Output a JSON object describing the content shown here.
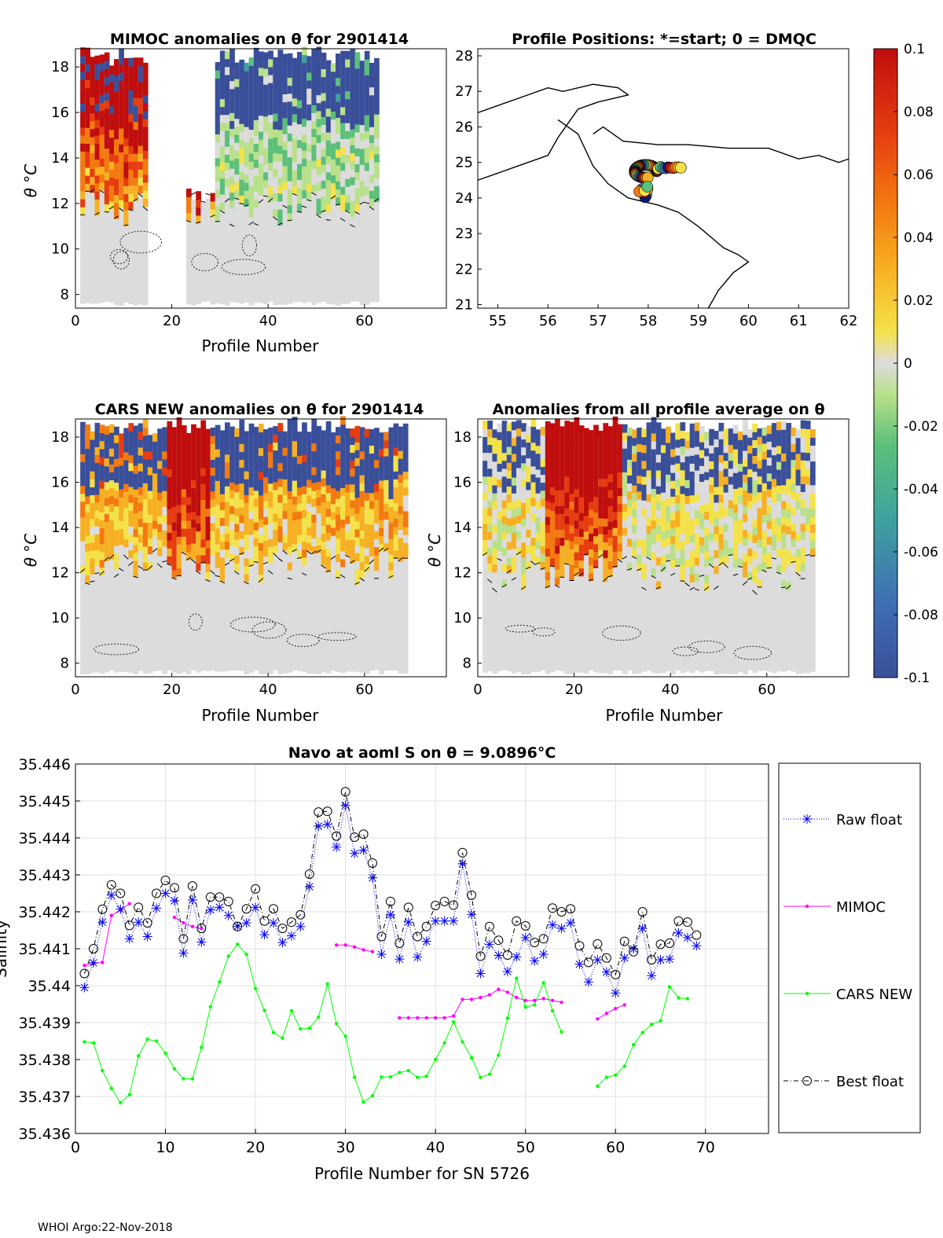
{
  "colors": {
    "raw_float": "#0000ff",
    "mimoc": "#ff00ff",
    "cars_new": "#00ff00",
    "best_float": "#000000",
    "colormap": [
      "#3a4f9a",
      "#3f6fb5",
      "#3fa0a0",
      "#5cc07a",
      "#b9e08a",
      "#dcdcdc",
      "#f4e24a",
      "#f7b023",
      "#f37a10",
      "#e63c10",
      "#c00d0d"
    ]
  },
  "footer": "WHOI Argo:22-Nov-2018",
  "panels": {
    "mimoc": {
      "title": "MIMOC anomalies on θ  for 2901414",
      "xlabel": "Profile Number",
      "ylabel": "θ °C",
      "xticks": [
        "0",
        "20",
        "40",
        "60"
      ],
      "yticks": [
        "8",
        "10",
        "12",
        "14",
        "16",
        "18"
      ]
    },
    "positions": {
      "title": "Profile Positions: *=start; 0 = DMQC",
      "xticks": [
        "55",
        "56",
        "57",
        "58",
        "59",
        "60",
        "61",
        "62"
      ],
      "yticks": [
        "21",
        "22",
        "23",
        "24",
        "25",
        "26",
        "27",
        "28"
      ]
    },
    "cars": {
      "title": "CARS NEW anomalies on θ for 2901414",
      "xlabel": "Profile Number",
      "ylabel": "θ °C",
      "xticks": [
        "0",
        "20",
        "40",
        "60"
      ],
      "yticks": [
        "8",
        "10",
        "12",
        "14",
        "16",
        "18"
      ]
    },
    "allavg": {
      "title": "Anomalies from all profile average on θ",
      "xlabel": "Profile Number",
      "ylabel": "θ °C",
      "xticks": [
        "0",
        "20",
        "40",
        "60"
      ],
      "yticks": [
        "8",
        "10",
        "12",
        "14",
        "16",
        "18"
      ]
    },
    "colorbar": {
      "ticks": [
        "0.1",
        "0.08",
        "0.06",
        "0.04",
        "0.02",
        "0",
        "-0.02",
        "-0.04",
        "-0.06",
        "-0.08",
        "-0.1"
      ]
    }
  },
  "chart_data": {
    "type": "line",
    "title": "Navo at aoml S on θ = 9.0896°C",
    "xlabel": "Profile Number for SN 5726",
    "ylabel": "Salinity",
    "xlim": [
      0,
      77
    ],
    "ylim": [
      35.436,
      35.446
    ],
    "xticks": [
      "0",
      "10",
      "20",
      "30",
      "40",
      "50",
      "60",
      "70"
    ],
    "yticks": [
      "35.436",
      "35.437",
      "35.438",
      "35.439",
      "35.44",
      "35.441",
      "35.442",
      "35.443",
      "35.444",
      "35.445",
      "35.446"
    ],
    "grid": true,
    "legend": [
      "Raw float",
      "MIMOC",
      "CARS NEW",
      "Best float"
    ],
    "series": [
      {
        "name": "Raw float",
        "x": [
          1,
          2,
          3,
          4,
          5,
          6,
          7,
          8,
          9,
          10,
          11,
          12,
          13,
          14,
          15,
          16,
          17,
          18,
          19,
          20,
          21,
          22,
          23,
          24,
          25,
          26,
          27,
          28,
          29,
          30,
          31,
          32,
          33,
          34,
          35,
          36,
          37,
          38,
          39,
          40,
          41,
          42,
          43,
          44,
          45,
          46,
          47,
          48,
          49,
          50,
          51,
          52,
          53,
          54,
          55,
          56,
          57,
          58,
          59,
          60,
          61,
          62,
          63,
          64,
          65,
          66,
          67,
          68,
          69
        ],
        "values": [
          35.43995,
          35.44062,
          35.44172,
          35.44245,
          35.44207,
          35.44127,
          35.44172,
          35.44133,
          35.4421,
          35.4425,
          35.4423,
          35.44088,
          35.44232,
          35.44118,
          35.44205,
          35.44212,
          35.4419,
          35.4416,
          35.4417,
          35.44212,
          35.44138,
          35.4417,
          35.44117,
          35.44135,
          35.4416,
          35.44268,
          35.44432,
          35.44437,
          35.44375,
          35.44488,
          35.44358,
          35.44367,
          35.44292,
          35.44085,
          35.44192,
          35.44072,
          35.44172,
          35.44077,
          35.4412,
          35.44175,
          35.44175,
          35.44175,
          35.4433,
          35.44193,
          35.44033,
          35.44112,
          35.44082,
          35.44038,
          35.44078,
          35.4413,
          35.44067,
          35.44085,
          35.44165,
          35.44155,
          35.4417,
          35.44058,
          35.4401,
          35.4407,
          35.44037,
          35.4398,
          35.44075,
          35.441,
          35.44155,
          35.44027,
          35.4407,
          35.44072,
          35.44143,
          35.4413,
          35.44108
        ]
      },
      {
        "name": "MIMOC",
        "segments": [
          {
            "x": [
              1,
              2,
              3,
              4,
              5,
              6
            ],
            "values": [
              35.44055,
              35.4406,
              35.44063,
              35.4419,
              35.44205,
              35.44222
            ]
          },
          {
            "x": [
              11,
              12,
              13,
              14
            ],
            "values": [
              35.44185,
              35.4417,
              35.4416,
              35.44155
            ]
          },
          {
            "x": [
              29,
              30,
              31,
              32,
              33
            ],
            "values": [
              35.4411,
              35.4411,
              35.44105,
              35.44097,
              35.44092
            ]
          },
          {
            "x": [
              36,
              37,
              38,
              39,
              40,
              41,
              42,
              43,
              44,
              45,
              46,
              47,
              48,
              49,
              50,
              51,
              52,
              53,
              54
            ],
            "values": [
              35.43913,
              35.43913,
              35.43913,
              35.43913,
              35.43913,
              35.43913,
              35.43918,
              35.43963,
              35.43963,
              35.43968,
              35.43975,
              35.4399,
              35.43982,
              35.43968,
              35.4396,
              35.4396,
              35.43965,
              35.4396,
              35.43955
            ]
          },
          {
            "x": [
              58,
              59,
              60,
              61
            ],
            "values": [
              35.4391,
              35.43925,
              35.43938,
              35.43948
            ]
          }
        ]
      },
      {
        "name": "CARS NEW",
        "segments": [
          {
            "x": [
              1,
              2,
              3,
              4,
              5,
              6,
              7,
              8,
              9,
              10,
              11,
              12,
              13,
              14,
              15,
              16,
              17,
              18,
              19,
              20,
              21,
              22,
              23,
              24,
              25,
              26,
              27,
              28,
              29,
              30,
              31,
              32,
              33,
              34,
              35,
              36,
              37,
              38,
              39,
              40,
              41,
              42,
              43,
              44,
              45,
              46,
              47,
              48,
              49,
              50,
              51,
              52,
              53,
              54
            ],
            "values": [
              35.43848,
              35.43845,
              35.4377,
              35.43722,
              35.43683,
              35.43705,
              35.4381,
              35.43855,
              35.4385,
              35.43817,
              35.43775,
              35.43748,
              35.43748,
              35.43833,
              35.43943,
              35.4401,
              35.4408,
              35.44112,
              35.44085,
              35.43992,
              35.43933,
              35.43873,
              35.43858,
              35.43932,
              35.43883,
              35.43885,
              35.43915,
              35.44005,
              35.43897,
              35.43863,
              35.43752,
              35.43685,
              35.43702,
              35.43753,
              35.43753,
              35.43765,
              35.4377,
              35.43752,
              35.43755,
              35.438,
              35.43845,
              35.43902,
              35.43848,
              35.43805,
              35.43752,
              35.4376,
              35.43812,
              35.43912,
              35.4402,
              35.43942,
              35.43948,
              35.44008,
              35.43932,
              35.43875
            ]
          },
          {
            "x": [
              58,
              59,
              60,
              61,
              62,
              63,
              64,
              65,
              66,
              67,
              68
            ],
            "values": [
              35.43728,
              35.43752,
              35.43758,
              35.43782,
              35.4384,
              35.43873,
              35.43895,
              35.43905,
              35.43997,
              35.43967,
              35.43965
            ]
          }
        ]
      },
      {
        "name": "Best float",
        "x": [
          1,
          2,
          3,
          4,
          5,
          6,
          7,
          8,
          9,
          10,
          11,
          12,
          13,
          14,
          15,
          16,
          17,
          18,
          19,
          20,
          21,
          22,
          23,
          24,
          25,
          26,
          27,
          28,
          29,
          30,
          31,
          32,
          33,
          34,
          35,
          36,
          37,
          38,
          39,
          40,
          41,
          42,
          43,
          44,
          45,
          46,
          47,
          48,
          49,
          50,
          51,
          52,
          53,
          54,
          55,
          56,
          57,
          58,
          59,
          60,
          61,
          62,
          63,
          64,
          65,
          66,
          67,
          68,
          69
        ],
        "values": [
          35.44033,
          35.441,
          35.44207,
          35.44273,
          35.4425,
          35.44163,
          35.44212,
          35.4417,
          35.4425,
          35.44285,
          35.44265,
          35.44127,
          35.4427,
          35.44155,
          35.4424,
          35.4424,
          35.44228,
          35.4416,
          35.44208,
          35.44262,
          35.44175,
          35.44208,
          35.44155,
          35.44172,
          35.44192,
          35.44302,
          35.4447,
          35.44472,
          35.44405,
          35.44525,
          35.44402,
          35.4441,
          35.44332,
          35.44133,
          35.44228,
          35.44115,
          35.44212,
          35.44133,
          35.4416,
          35.44217,
          35.44228,
          35.44218,
          35.4436,
          35.44245,
          35.4408,
          35.4416,
          35.44123,
          35.44083,
          35.44175,
          35.44162,
          35.44117,
          35.44127,
          35.4421,
          35.442,
          35.44208,
          35.44108,
          35.44063,
          35.44113,
          35.44075,
          35.4403,
          35.4412,
          35.44092,
          35.442,
          35.4407,
          35.44112,
          35.44115,
          35.44175,
          35.44172,
          35.44137
        ]
      }
    ]
  }
}
